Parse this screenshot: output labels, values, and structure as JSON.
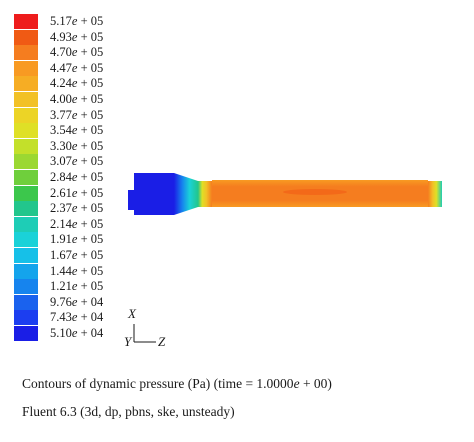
{
  "legend": {
    "levels": [
      {
        "mant": "5.17",
        "exp": "05",
        "color": "#ee1c1c"
      },
      {
        "mant": "4.93",
        "exp": "05",
        "color": "#f05a14"
      },
      {
        "mant": "4.70",
        "exp": "05",
        "color": "#f57d1f"
      },
      {
        "mant": "4.47",
        "exp": "05",
        "color": "#f89a22"
      },
      {
        "mant": "4.24",
        "exp": "05",
        "color": "#f6ad24"
      },
      {
        "mant": "4.00",
        "exp": "05",
        "color": "#f2c126"
      },
      {
        "mant": "3.77",
        "exp": "05",
        "color": "#ecd426"
      },
      {
        "mant": "3.54",
        "exp": "05",
        "color": "#dfe026"
      },
      {
        "mant": "3.30",
        "exp": "05",
        "color": "#c3e02a"
      },
      {
        "mant": "3.07",
        "exp": "05",
        "color": "#9bd832"
      },
      {
        "mant": "2.84",
        "exp": "05",
        "color": "#6fcf3c"
      },
      {
        "mant": "2.61",
        "exp": "05",
        "color": "#3cc74c"
      },
      {
        "mant": "2.37",
        "exp": "05",
        "color": "#22c68c"
      },
      {
        "mant": "2.14",
        "exp": "05",
        "color": "#1ecdb6"
      },
      {
        "mant": "1.91",
        "exp": "05",
        "color": "#1ad2d8"
      },
      {
        "mant": "1.67",
        "exp": "05",
        "color": "#16c0e8"
      },
      {
        "mant": "1.44",
        "exp": "05",
        "color": "#14a4ec"
      },
      {
        "mant": "1.21",
        "exp": "05",
        "color": "#1684ee"
      },
      {
        "mant": "9.76",
        "exp": "04",
        "color": "#1a62ee"
      },
      {
        "mant": "7.43",
        "exp": "04",
        "color": "#1c3ef0"
      },
      {
        "mant": "5.10",
        "exp": "04",
        "color": "#1a1ee6"
      }
    ]
  },
  "axes": {
    "vertical": "X",
    "horizontal": "Z",
    "origin": "Y"
  },
  "caption": {
    "before_e": "Contours of dynamic pressure (Pa) (time = 1.0000",
    "e": "e",
    "after_e": " + 00)"
  },
  "solver": "Fluent 6.3 (3d, dp, pbns, ske, unsteady)",
  "colors": {
    "inlet": "#1a1ee6",
    "pipe_core": "#f57d1f",
    "pipe_edge": "#f89a22",
    "hot_spot": "#f05a14"
  }
}
